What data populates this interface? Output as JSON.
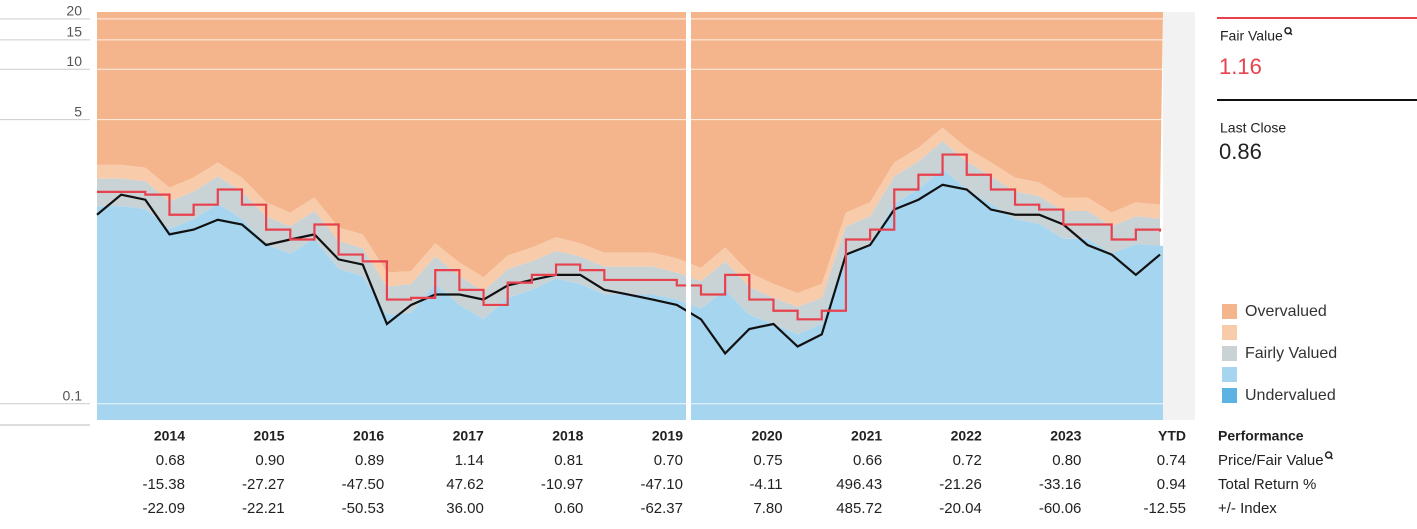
{
  "chart_data": {
    "type": "valuation-line",
    "log_scale": true,
    "ylim": [
      0.08,
      22
    ],
    "yticks": [
      0.1,
      5,
      10,
      15,
      20
    ],
    "grid": true,
    "series": [
      {
        "name": "Last Close",
        "color": "#111111",
        "values": [
          1.35,
          1.78,
          1.66,
          1.03,
          1.1,
          1.26,
          1.18,
          0.89,
          0.96,
          1.03,
          0.73,
          0.68,
          0.3,
          0.39,
          0.45,
          0.45,
          0.42,
          0.51,
          0.55,
          0.59,
          0.59,
          0.48,
          0.45,
          0.42,
          0.39,
          0.32,
          0.2,
          0.28,
          0.3,
          0.22,
          0.26,
          0.78,
          0.89,
          1.45,
          1.66,
          2.04,
          1.91,
          1.45,
          1.35,
          1.35,
          1.18,
          0.89,
          0.78,
          0.59,
          0.78
        ]
      },
      {
        "name": "Fair Value",
        "color": "#e8414e",
        "values": [
          1.85,
          1.85,
          1.78,
          1.35,
          1.55,
          1.91,
          1.55,
          1.1,
          0.96,
          1.18,
          0.78,
          0.71,
          0.42,
          0.43,
          0.63,
          0.48,
          0.39,
          0.53,
          0.59,
          0.68,
          0.63,
          0.55,
          0.55,
          0.55,
          0.51,
          0.45,
          0.59,
          0.42,
          0.36,
          0.32,
          0.36,
          0.96,
          1.1,
          1.91,
          2.34,
          3.09,
          2.34,
          1.91,
          1.55,
          1.45,
          1.18,
          1.18,
          0.96,
          1.1,
          1.07
        ]
      }
    ],
    "bands": [
      {
        "name": "Overvalued",
        "color": "#f4b48c"
      },
      {
        "name": null,
        "color": "#f8cbab",
        "values": [
          2.68,
          2.68,
          2.58,
          1.96,
          2.25,
          2.77,
          2.25,
          1.6,
          1.39,
          1.71,
          1.13,
          1.03,
          0.61,
          0.62,
          0.91,
          0.7,
          0.57,
          0.77,
          0.86,
          0.99,
          0.91,
          0.8,
          0.8,
          0.8,
          0.74,
          0.65,
          0.86,
          0.61,
          0.52,
          0.46,
          0.52,
          1.39,
          1.6,
          2.77,
          3.39,
          4.48,
          3.39,
          2.77,
          2.25,
          2.1,
          1.71,
          1.71,
          1.39,
          1.6,
          1.55
        ]
      },
      {
        "name": "Fairly Valued",
        "color": "#c9d3d6",
        "values": [
          2.22,
          2.22,
          2.14,
          1.62,
          1.86,
          2.29,
          1.86,
          1.32,
          1.15,
          1.42,
          0.94,
          0.85,
          0.5,
          0.52,
          0.76,
          0.58,
          0.47,
          0.64,
          0.71,
          0.82,
          0.76,
          0.66,
          0.66,
          0.66,
          0.61,
          0.54,
          0.71,
          0.5,
          0.43,
          0.38,
          0.43,
          1.15,
          1.32,
          2.29,
          2.81,
          3.71,
          2.81,
          2.29,
          1.86,
          1.74,
          1.42,
          1.42,
          1.15,
          1.32,
          1.28
        ]
      },
      {
        "name": null,
        "color": "#a6d5f0",
        "values": [
          1.52,
          1.52,
          1.46,
          1.11,
          1.27,
          1.57,
          1.27,
          0.9,
          0.79,
          0.97,
          0.64,
          0.58,
          0.34,
          0.35,
          0.52,
          0.39,
          0.32,
          0.43,
          0.48,
          0.56,
          0.52,
          0.45,
          0.45,
          0.45,
          0.42,
          0.37,
          0.48,
          0.34,
          0.3,
          0.26,
          0.3,
          0.79,
          0.9,
          1.57,
          1.92,
          2.53,
          1.92,
          1.57,
          1.27,
          1.19,
          0.97,
          0.97,
          0.79,
          0.9,
          0.88
        ]
      },
      {
        "name": "Undervalued",
        "color": "#5cb2e3"
      }
    ]
  },
  "panel": {
    "fair_value_label": "Fair Value",
    "fair_value": 1.16,
    "last_close_label": "Last Close",
    "last_close": 0.86
  },
  "table": {
    "title": "Performance",
    "columns": [
      "2014",
      "2015",
      "2016",
      "2017",
      "2018",
      "2019",
      "2020",
      "2021",
      "2022",
      "2023",
      "YTD"
    ],
    "rows": [
      {
        "label": "Price/Fair Value",
        "cells": [
          "0.68",
          "0.90",
          "0.89",
          "1.14",
          "0.81",
          "0.70",
          "0.75",
          "0.66",
          "0.72",
          "0.80",
          "0.74"
        ]
      },
      {
        "label": "Total Return %",
        "cells": [
          "-15.38",
          "-27.27",
          "-47.50",
          "47.62",
          "-10.97",
          "-47.10",
          "-4.11",
          "496.43",
          "-21.26",
          "-33.16",
          "0.94"
        ]
      },
      {
        "label": "+/- Index",
        "cells": [
          "-22.09",
          "-22.21",
          "-50.53",
          "36.00",
          "0.60",
          "-62.37",
          "7.80",
          "485.72",
          "-20.04",
          "-60.06",
          "-12.55"
        ]
      }
    ]
  }
}
